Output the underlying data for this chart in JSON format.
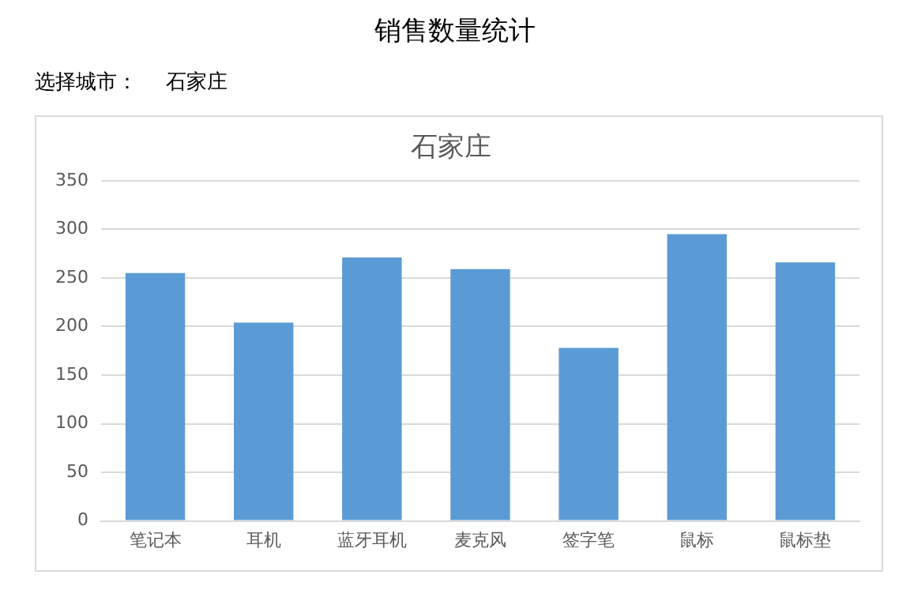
{
  "chart_data": {
    "type": "bar",
    "title": "石家庄",
    "annotations": [
      "销售数量统计",
      "选择城市：",
      "石家庄"
    ],
    "categories": [
      "笔记本",
      "耳机",
      "蓝牙耳机",
      "麦克风",
      "签字笔",
      "鼠标",
      "鼠标垫"
    ],
    "values": [
      255,
      204,
      271,
      259,
      178,
      295,
      266
    ],
    "color": "#5b9bd5",
    "ylim": [
      0,
      350
    ],
    "yticks": [
      0,
      50,
      100,
      150,
      200,
      250,
      300,
      350
    ],
    "grid": "y"
  }
}
